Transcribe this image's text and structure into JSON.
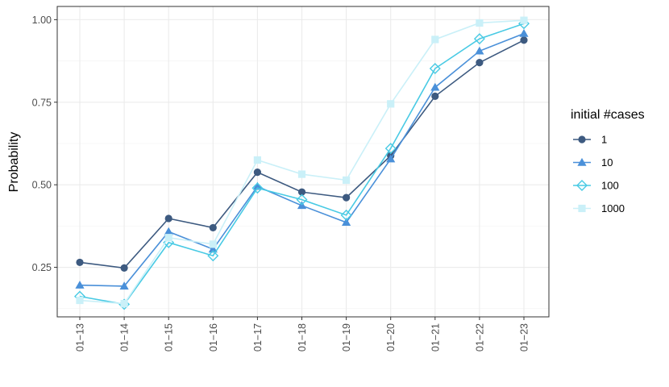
{
  "chart_data": {
    "type": "line",
    "title": "",
    "xlabel": "",
    "ylabel": "Probability",
    "categories": [
      "01−13",
      "01−14",
      "01−15",
      "01−16",
      "01−17",
      "01−18",
      "01−19",
      "01−20",
      "01−21",
      "01−22",
      "01−23"
    ],
    "ylim": [
      0.1,
      1.04
    ],
    "yticks": [
      0.25,
      0.5,
      0.75,
      1.0
    ],
    "ytick_labels": [
      "0.25",
      "0.50",
      "0.75",
      "1.00"
    ],
    "grid": true,
    "legend": {
      "title": "initial #cases",
      "position": "right"
    },
    "series": [
      {
        "name": "1",
        "color": "#3d5a80",
        "marker": "circle",
        "values": [
          0.265,
          0.248,
          0.398,
          0.37,
          0.538,
          0.478,
          0.461,
          0.588,
          0.768,
          0.87,
          0.938
        ]
      },
      {
        "name": "10",
        "color": "#4a90d9",
        "marker": "triangle",
        "values": [
          0.196,
          0.193,
          0.358,
          0.305,
          0.495,
          0.437,
          0.386,
          0.578,
          0.795,
          0.905,
          0.958
        ]
      },
      {
        "name": "100",
        "color": "#48cae4",
        "marker": "diamond-open",
        "values": [
          0.162,
          0.138,
          0.325,
          0.285,
          0.49,
          0.455,
          0.408,
          0.61,
          0.852,
          0.942,
          0.988
        ]
      },
      {
        "name": "1000",
        "color": "#caf0f8",
        "marker": "square",
        "values": [
          0.15,
          0.14,
          0.34,
          0.32,
          0.575,
          0.532,
          0.514,
          0.745,
          0.94,
          0.99,
          0.998
        ]
      }
    ]
  }
}
